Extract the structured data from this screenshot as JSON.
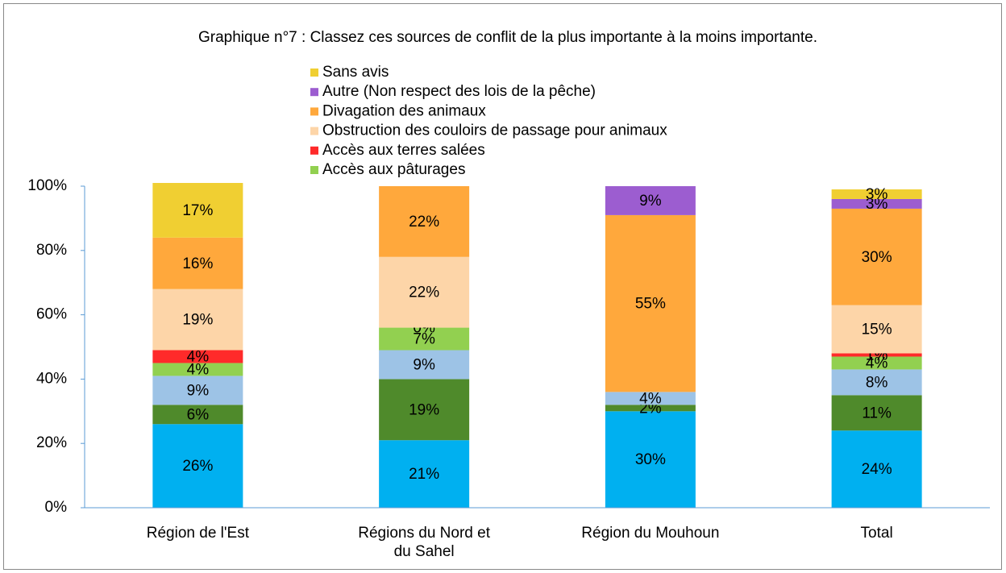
{
  "chart_data": {
    "type": "stacked_bar",
    "title": "Graphique n°7 : Classez ces sources de conflit de la plus importante à la moins importante.",
    "categories": [
      "Région de l'Est",
      "Régions du Nord et du Sahel",
      "Région du Mouhoun",
      "Total"
    ],
    "ylim": [
      0,
      100
    ],
    "yticks": [
      {
        "value": 0,
        "label": "0%"
      },
      {
        "value": 20,
        "label": "20%"
      },
      {
        "value": 40,
        "label": "40%"
      },
      {
        "value": 60,
        "label": "60%"
      },
      {
        "value": 80,
        "label": "80%"
      },
      {
        "value": 100,
        "label": "100%"
      }
    ],
    "series": [
      {
        "name": null,
        "color": "#00b0f0",
        "values": [
          26,
          21,
          30,
          24
        ],
        "value_labels": [
          "26%",
          "21%",
          "30%",
          "24%"
        ]
      },
      {
        "name": null,
        "color": "#4f8a2b",
        "values": [
          6,
          19,
          2,
          11
        ],
        "value_labels": [
          "6%",
          "19%",
          "2%",
          "11%"
        ]
      },
      {
        "name": null,
        "color": "#9dc3e6",
        "values": [
          9,
          9,
          4,
          8
        ],
        "value_labels": [
          "9%",
          "9%",
          "4%",
          "8%"
        ]
      },
      {
        "name": "Accès aux pâturages",
        "color": "#92d050",
        "values": [
          4,
          7,
          null,
          4
        ],
        "value_labels": [
          "4%",
          "7%",
          null,
          "4%"
        ]
      },
      {
        "name": "Accès aux terres salées",
        "color": "#ff2a2a",
        "values": [
          4,
          0,
          null,
          1
        ],
        "value_labels": [
          "4%",
          "0%",
          null,
          "1%"
        ]
      },
      {
        "name": "Obstruction des couloirs de passage pour animaux",
        "color": "#fdd5a8",
        "values": [
          19,
          22,
          null,
          15
        ],
        "value_labels": [
          "19%",
          "22%",
          null,
          "15%"
        ]
      },
      {
        "name": "Divagation des animaux",
        "color": "#ffa83c",
        "values": [
          16,
          22,
          55,
          30
        ],
        "value_labels": [
          "16%",
          "22%",
          "55%",
          "30%"
        ]
      },
      {
        "name": "Autre (Non respect des lois de la pêche)",
        "color": "#9c5dd0",
        "values": [
          null,
          null,
          9,
          3
        ],
        "value_labels": [
          null,
          null,
          "9%",
          "3%"
        ]
      },
      {
        "name": "Sans avis",
        "color": "#f0cf32",
        "values": [
          17,
          null,
          null,
          3
        ],
        "value_labels": [
          "17%",
          null,
          null,
          "3%"
        ]
      }
    ]
  }
}
